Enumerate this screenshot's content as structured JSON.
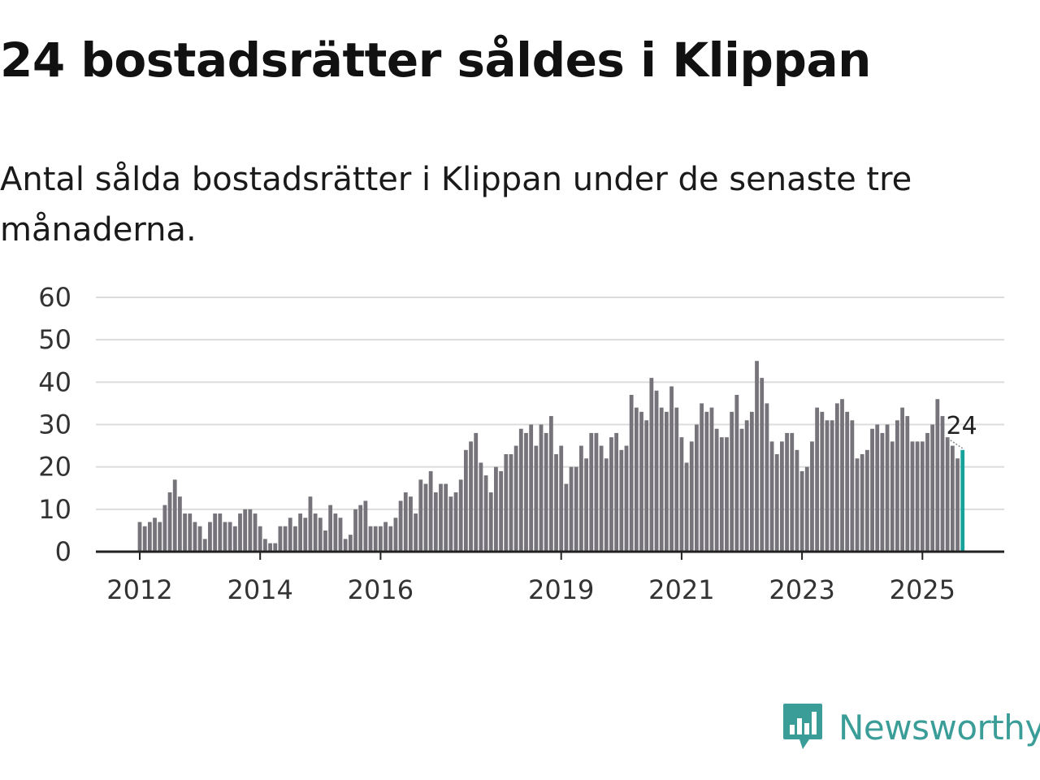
{
  "title": "24 bostadsrätter såldes i Klippan",
  "subtitle": "Antal sålda bostadsrätter i Klippan under de senaste tre månaderna.",
  "brand": {
    "name": "Newsworthy",
    "color": "#3a9d97",
    "icon": "newsworthy-logo-icon"
  },
  "colors": {
    "bar": "#76747a",
    "highlight": "#17a39b",
    "grid": "#dcdcdc",
    "axis": "#222222"
  },
  "chart_data": {
    "type": "bar",
    "title": "",
    "xlabel": "",
    "ylabel": "",
    "ylim": [
      0,
      60
    ],
    "yticks": [
      0,
      10,
      20,
      30,
      40,
      50,
      60
    ],
    "x_ticks": [
      {
        "label": "2012",
        "index": 0
      },
      {
        "label": "2014",
        "index": 24
      },
      {
        "label": "2016",
        "index": 48
      },
      {
        "label": "2019",
        "index": 84
      },
      {
        "label": "2021",
        "index": 108
      },
      {
        "label": "2023",
        "index": 132
      },
      {
        "label": "2025",
        "index": 156
      }
    ],
    "period": "monthly, Jan 2012 – Sep 2025",
    "values": [
      7,
      6,
      7,
      8,
      7,
      11,
      14,
      17,
      13,
      9,
      9,
      7,
      6,
      3,
      7,
      9,
      9,
      7,
      7,
      6,
      9,
      10,
      10,
      9,
      6,
      3,
      2,
      2,
      6,
      6,
      8,
      6,
      9,
      8,
      13,
      9,
      8,
      5,
      11,
      9,
      8,
      3,
      4,
      10,
      11,
      12,
      6,
      6,
      6,
      7,
      6,
      8,
      12,
      14,
      13,
      9,
      17,
      16,
      19,
      14,
      16,
      16,
      13,
      14,
      17,
      24,
      26,
      28,
      21,
      18,
      14,
      20,
      19,
      23,
      23,
      25,
      29,
      28,
      30,
      25,
      30,
      28,
      32,
      23,
      25,
      16,
      20,
      20,
      25,
      22,
      28,
      28,
      25,
      22,
      27,
      28,
      24,
      25,
      37,
      34,
      33,
      31,
      41,
      38,
      34,
      33,
      39,
      34,
      27,
      21,
      26,
      30,
      35,
      33,
      34,
      29,
      27,
      27,
      33,
      37,
      29,
      31,
      33,
      45,
      41,
      35,
      26,
      23,
      26,
      28,
      28,
      24,
      19,
      20,
      26,
      34,
      33,
      31,
      31,
      35,
      36,
      33,
      31,
      22,
      23,
      24,
      29,
      30,
      28,
      30,
      26,
      31,
      34,
      32,
      26,
      26,
      26,
      28,
      30,
      36,
      32,
      27,
      25,
      22,
      24
    ],
    "highlight_index": 164,
    "highlight_label": "24"
  }
}
